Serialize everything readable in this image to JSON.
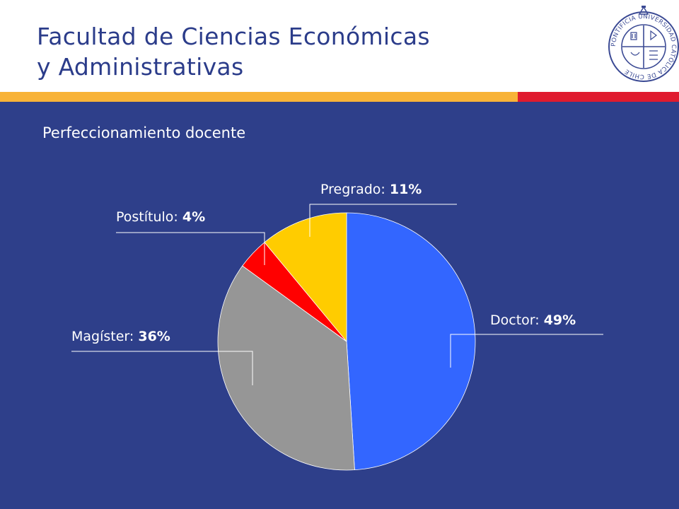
{
  "header": {
    "title_line1": "Facultad de Ciencias Económicas",
    "title_line2": "y Administrativas",
    "logo_icon": "university-seal-icon",
    "seal_text": "PONTIFICIA UNIVERSIDAD CATÓLICA DE CHILE"
  },
  "colors": {
    "background": "#2e3f8a",
    "title": "#2b3c8a",
    "stripe_yellow": "#f8b338",
    "stripe_red": "#e01b2f"
  },
  "slide": {
    "subtitle": "Perfeccionamiento docente"
  },
  "chart_data": {
    "type": "pie",
    "title": "Perfeccionamiento docente",
    "slices": [
      {
        "label": "Doctor",
        "value": 49,
        "display": "49%",
        "color": "#3366ff"
      },
      {
        "label": "Magíster",
        "value": 36,
        "display": "36%",
        "color": "#969696"
      },
      {
        "label": "Postítulo",
        "value": 4,
        "display": "4%",
        "color": "#ff0000"
      },
      {
        "label": "Pregrado",
        "value": 11,
        "display": "11%",
        "color": "#ffcc00"
      }
    ],
    "start_angle_deg": 0,
    "direction": "clockwise",
    "legend": "none",
    "data_labels": "outside-with-leader-lines"
  }
}
